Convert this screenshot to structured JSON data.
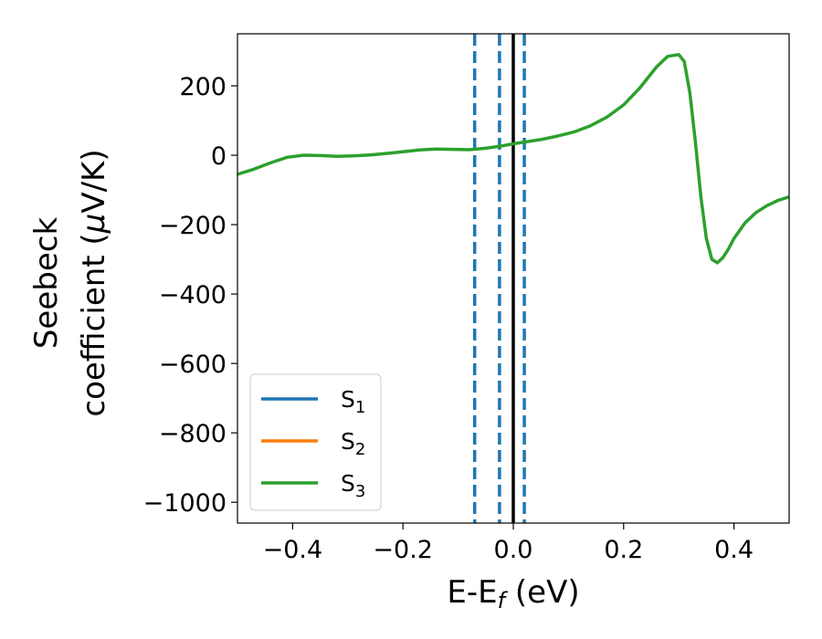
{
  "chart_data": {
    "type": "line",
    "xlabel": {
      "main": "E-E",
      "sub": "f",
      "unit": " (eV)"
    },
    "ylabel": {
      "line1": "Seebeck",
      "line2_prefix": "coefficient  (",
      "mu": "μ",
      "line2_suffix": "V/K)"
    },
    "xlim": [
      -0.5,
      0.5
    ],
    "ylim": [
      -1060,
      350
    ],
    "x_ticks": [
      -0.4,
      -0.2,
      0.0,
      0.2,
      0.4
    ],
    "x_tick_labels": [
      "−0.4",
      "−0.2",
      "0.0",
      "0.2",
      "0.4"
    ],
    "y_ticks": [
      200,
      0,
      -200,
      -400,
      -600,
      -800,
      -1000
    ],
    "y_tick_labels": [
      "200",
      "0",
      "−200",
      "−400",
      "−600",
      "−800",
      "−1000"
    ],
    "grid": false,
    "legend_position": "lower-left",
    "series": [
      {
        "name": "S",
        "sub": "1",
        "color": "#1f77b4",
        "x": [],
        "y": []
      },
      {
        "name": "S",
        "sub": "2",
        "color": "#ff7f0e",
        "x": [],
        "y": []
      },
      {
        "name": "S",
        "sub": "3",
        "color": "#2ca02c",
        "x": [
          -0.5,
          -0.47,
          -0.44,
          -0.41,
          -0.38,
          -0.35,
          -0.32,
          -0.29,
          -0.26,
          -0.23,
          -0.2,
          -0.17,
          -0.14,
          -0.11,
          -0.08,
          -0.05,
          -0.02,
          0.0,
          0.02,
          0.05,
          0.08,
          0.11,
          0.14,
          0.17,
          0.2,
          0.23,
          0.26,
          0.28,
          0.3,
          0.31,
          0.32,
          0.33,
          0.34,
          0.35,
          0.36,
          0.37,
          0.38,
          0.39,
          0.4,
          0.42,
          0.44,
          0.46,
          0.48,
          0.5
        ],
        "y": [
          -55,
          -40,
          -22,
          -6,
          0,
          -1,
          -3,
          -2,
          1,
          5,
          10,
          15,
          18,
          17,
          16,
          20,
          27,
          33,
          38,
          45,
          55,
          67,
          85,
          110,
          145,
          195,
          255,
          285,
          290,
          270,
          180,
          40,
          -120,
          -240,
          -300,
          -310,
          -295,
          -270,
          -240,
          -195,
          -165,
          -145,
          -130,
          -120
        ]
      }
    ],
    "vertical_lines": [
      {
        "x": -0.07,
        "style": "dashed",
        "color": "#1f77b4"
      },
      {
        "x": -0.025,
        "style": "dashed",
        "color": "#1f77b4"
      },
      {
        "x": 0.02,
        "style": "dashed",
        "color": "#1f77b4"
      },
      {
        "x": 0.0,
        "style": "solid",
        "color": "#000000"
      }
    ]
  }
}
